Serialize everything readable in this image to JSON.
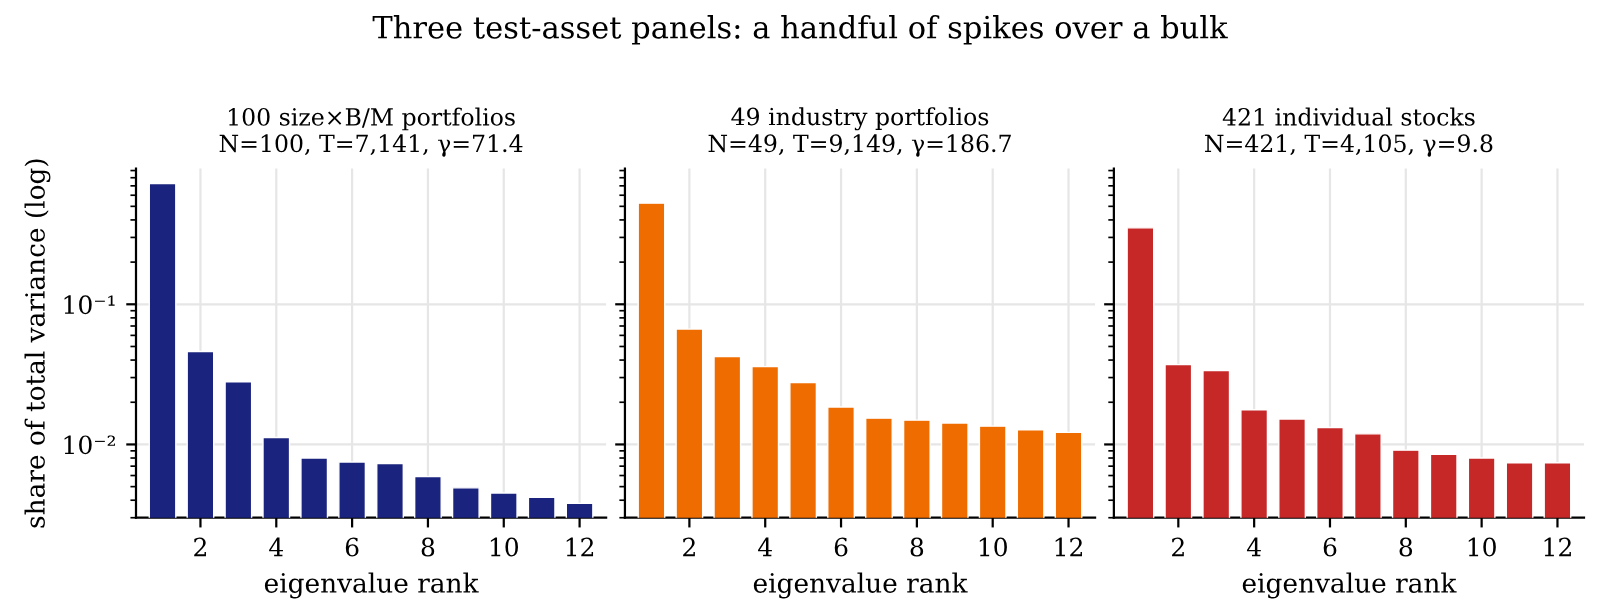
{
  "chart_data": [
    {
      "type": "bar",
      "title": "Three test-asset panels: a handful of spikes over a bulk",
      "subtitle": "100 size×B/M portfolios\nN=100, T=7,141, γ=71.4",
      "xlabel": "eigenvalue rank",
      "ylabel": "share of total variance (log)",
      "x": [
        1,
        2,
        3,
        4,
        5,
        6,
        7,
        8,
        9,
        10,
        11,
        12
      ],
      "values": [
        0.726,
        0.046,
        0.028,
        0.0112,
        0.008,
        0.0075,
        0.0073,
        0.0059,
        0.0049,
        0.0045,
        0.0042,
        0.0038
      ],
      "color": "#1a237e",
      "log": "y",
      "ylim": [
        0.003,
        0.93
      ],
      "yticks": [
        {
          "value": 0.1,
          "label": "10⁻¹"
        },
        {
          "value": 0.01,
          "label": "10⁻²"
        }
      ],
      "xlim": [
        0.3,
        12.7
      ],
      "xticks": [
        2,
        4,
        6,
        8,
        10,
        12
      ],
      "grid": true
    },
    {
      "type": "bar",
      "subtitle": "49 industry portfolios\nN=49, T=9,149, γ=186.7",
      "xlabel": "eigenvalue rank",
      "x": [
        1,
        2,
        3,
        4,
        5,
        6,
        7,
        8,
        9,
        10,
        11,
        12
      ],
      "values": [
        0.527,
        0.0665,
        0.0424,
        0.0359,
        0.0276,
        0.0185,
        0.0154,
        0.0149,
        0.0142,
        0.0135,
        0.0127,
        0.0122
      ],
      "color": "#ef6c00",
      "log": "y",
      "ylim": [
        0.003,
        0.93
      ],
      "xlim": [
        0.3,
        12.7
      ],
      "xticks": [
        2,
        4,
        6,
        8,
        10,
        12
      ],
      "grid": true,
      "tick_labels": "x"
    },
    {
      "type": "bar",
      "subtitle": "421 individual stocks\nN=421, T=4,105, γ=9.8",
      "xlabel": "eigenvalue rank",
      "x": [
        1,
        2,
        3,
        4,
        5,
        6,
        7,
        8,
        9,
        10,
        11,
        12
      ],
      "values": [
        0.351,
        0.0371,
        0.0336,
        0.0177,
        0.0152,
        0.0132,
        0.0119,
        0.0091,
        0.0085,
        0.008,
        0.0074,
        0.0074
      ],
      "color": "#c62828",
      "log": "y",
      "ylim": [
        0.003,
        0.93
      ],
      "xlim": [
        0.3,
        12.7
      ],
      "xticks": [
        2,
        4,
        6,
        8,
        10,
        12
      ],
      "grid": true,
      "tick_labels": "x"
    }
  ]
}
